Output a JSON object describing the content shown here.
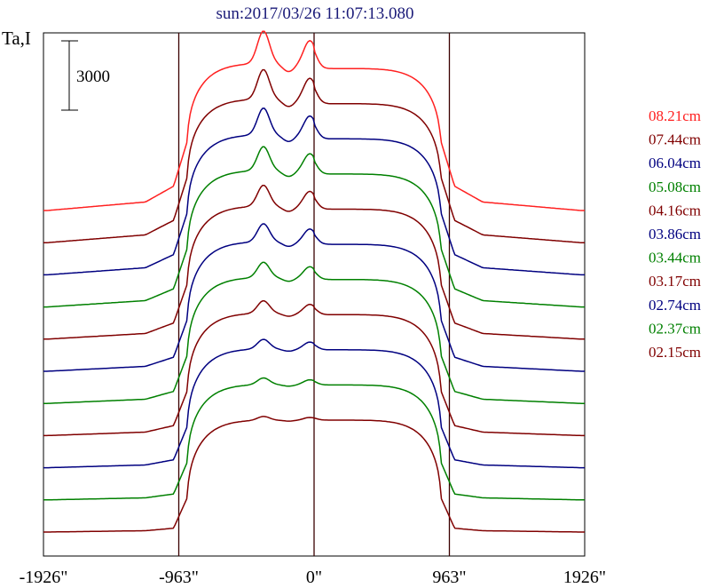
{
  "chart_data": {
    "type": "line",
    "title": "sun:2017/03/26 11:07:13.080",
    "ylabel": "Ta,I",
    "scale_bar_label": "3000",
    "x_ticks": [
      "-1926\"",
      "-963\"",
      "0\"",
      "963\"",
      "1926\""
    ],
    "x_tick_values": [
      -1926,
      -963,
      0,
      963,
      1926
    ],
    "xlim": [
      -1926,
      1926
    ],
    "vertical_lines_at": [
      -963,
      0,
      963
    ],
    "grid": false,
    "legend_position": "right",
    "series": [
      {
        "name": "08.21cm",
        "color": "#ff2020"
      },
      {
        "name": "07.44cm",
        "color": "#800000"
      },
      {
        "name": "06.04cm",
        "color": "#000080"
      },
      {
        "name": "05.08cm",
        "color": "#008000"
      },
      {
        "name": "04.16cm",
        "color": "#800000"
      },
      {
        "name": "03.86cm",
        "color": "#000080"
      },
      {
        "name": "03.44cm",
        "color": "#008000"
      },
      {
        "name": "03.17cm",
        "color": "#800000"
      },
      {
        "name": "02.74cm",
        "color": "#000080"
      },
      {
        "name": "02.37cm",
        "color": "#008000"
      },
      {
        "name": "02.15cm",
        "color": "#800000"
      }
    ]
  }
}
